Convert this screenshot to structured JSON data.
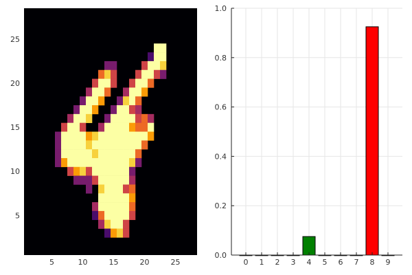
{
  "chart_data": [
    {
      "type": "heatmap",
      "title": "",
      "xlabel": "",
      "ylabel": "",
      "xlim": [
        0.5,
        28.5
      ],
      "ylim": [
        0.5,
        28.5
      ],
      "x_ticks": [
        "5",
        "10",
        "15",
        "20",
        "25"
      ],
      "y_ticks": [
        "5",
        "10",
        "15",
        "20",
        "25"
      ],
      "colorscale": [
        "#000004",
        "#1b0c41",
        "#4a0c6b",
        "#781c6d",
        "#a52c60",
        "#cf4446",
        "#ed6925",
        "#fb9b06",
        "#f7d13d",
        "#fcffa4"
      ],
      "cells_format": "[column, row, intensity 0-1]",
      "cells": [
        [
          22,
          24,
          1
        ],
        [
          23,
          24,
          1
        ],
        [
          21,
          23,
          0.2
        ],
        [
          22,
          23,
          1
        ],
        [
          23,
          23,
          1
        ],
        [
          14,
          22,
          0.3
        ],
        [
          15,
          22,
          0.3
        ],
        [
          20,
          22,
          0.6
        ],
        [
          21,
          22,
          1
        ],
        [
          22,
          22,
          1
        ],
        [
          23,
          22,
          0.9
        ],
        [
          13,
          21,
          0.7
        ],
        [
          14,
          21,
          0.85
        ],
        [
          15,
          21,
          0.5
        ],
        [
          19,
          21,
          0.5
        ],
        [
          20,
          21,
          1
        ],
        [
          21,
          21,
          1
        ],
        [
          22,
          21,
          0.6
        ],
        [
          23,
          21,
          0.3
        ],
        [
          12,
          20,
          0.5
        ],
        [
          13,
          20,
          1
        ],
        [
          14,
          20,
          1
        ],
        [
          15,
          20,
          0.6
        ],
        [
          18,
          20,
          0.5
        ],
        [
          19,
          20,
          1
        ],
        [
          20,
          20,
          1
        ],
        [
          21,
          20,
          0.65
        ],
        [
          11,
          19,
          0.4
        ],
        [
          12,
          19,
          0.95
        ],
        [
          13,
          19,
          1
        ],
        [
          14,
          19,
          0.7
        ],
        [
          17,
          19,
          0.4
        ],
        [
          18,
          19,
          1
        ],
        [
          19,
          19,
          1
        ],
        [
          20,
          19,
          0.8
        ],
        [
          10,
          18,
          0.35
        ],
        [
          11,
          18,
          1
        ],
        [
          12,
          18,
          1
        ],
        [
          13,
          18,
          0.8
        ],
        [
          16,
          18,
          0.3
        ],
        [
          17,
          18,
          0.9
        ],
        [
          18,
          18,
          1
        ],
        [
          19,
          18,
          0.7
        ],
        [
          9,
          17,
          0.3
        ],
        [
          10,
          17,
          0.95
        ],
        [
          11,
          17,
          1
        ],
        [
          12,
          17,
          0.8
        ],
        [
          15,
          17,
          0.3
        ],
        [
          16,
          17,
          0.95
        ],
        [
          17,
          17,
          1
        ],
        [
          18,
          17,
          0.6
        ],
        [
          19,
          17,
          0.45
        ],
        [
          8,
          16,
          0.4
        ],
        [
          9,
          16,
          1
        ],
        [
          10,
          16,
          1
        ],
        [
          11,
          16,
          0.9
        ],
        [
          14,
          16,
          0.3
        ],
        [
          15,
          16,
          1
        ],
        [
          16,
          16,
          1
        ],
        [
          17,
          16,
          1
        ],
        [
          18,
          16,
          1
        ],
        [
          19,
          16,
          0.5
        ],
        [
          20,
          16,
          0.7
        ],
        [
          21,
          16,
          0.4
        ],
        [
          7,
          15,
          0.6
        ],
        [
          8,
          15,
          1
        ],
        [
          9,
          15,
          1
        ],
        [
          10,
          15,
          0.6
        ],
        [
          13,
          15,
          0.4
        ],
        [
          14,
          15,
          1
        ],
        [
          15,
          15,
          1
        ],
        [
          16,
          15,
          1
        ],
        [
          17,
          15,
          1
        ],
        [
          18,
          15,
          0.8
        ],
        [
          19,
          15,
          0.7
        ],
        [
          20,
          15,
          0.7
        ],
        [
          21,
          15,
          1
        ],
        [
          6,
          14,
          0.3
        ],
        [
          7,
          14,
          1
        ],
        [
          8,
          14,
          1
        ],
        [
          9,
          14,
          1
        ],
        [
          10,
          14,
          1
        ],
        [
          11,
          14,
          0.8
        ],
        [
          12,
          14,
          0.9
        ],
        [
          13,
          14,
          1
        ],
        [
          14,
          14,
          1
        ],
        [
          15,
          14,
          1
        ],
        [
          16,
          14,
          1
        ],
        [
          17,
          14,
          1
        ],
        [
          18,
          14,
          1
        ],
        [
          19,
          14,
          1
        ],
        [
          20,
          14,
          1
        ],
        [
          21,
          14,
          0.75
        ],
        [
          6,
          13,
          0.35
        ],
        [
          7,
          13,
          1
        ],
        [
          8,
          13,
          1
        ],
        [
          9,
          13,
          1
        ],
        [
          10,
          13,
          1
        ],
        [
          11,
          13,
          0.85
        ],
        [
          12,
          13,
          1
        ],
        [
          13,
          13,
          1
        ],
        [
          14,
          13,
          1
        ],
        [
          15,
          13,
          1
        ],
        [
          16,
          13,
          1
        ],
        [
          17,
          13,
          1
        ],
        [
          18,
          13,
          1
        ],
        [
          19,
          13,
          1
        ],
        [
          20,
          13,
          0.7
        ],
        [
          6,
          12,
          0.3
        ],
        [
          7,
          12,
          1
        ],
        [
          8,
          12,
          1
        ],
        [
          9,
          12,
          1
        ],
        [
          10,
          12,
          1
        ],
        [
          11,
          12,
          1
        ],
        [
          12,
          12,
          0.9
        ],
        [
          13,
          12,
          1
        ],
        [
          14,
          12,
          1
        ],
        [
          15,
          12,
          1
        ],
        [
          16,
          12,
          1
        ],
        [
          17,
          12,
          1
        ],
        [
          18,
          12,
          1
        ],
        [
          19,
          12,
          0.7
        ],
        [
          6,
          11,
          0.3
        ],
        [
          7,
          11,
          0.75
        ],
        [
          8,
          11,
          1
        ],
        [
          9,
          11,
          1
        ],
        [
          10,
          11,
          1
        ],
        [
          11,
          11,
          1
        ],
        [
          12,
          11,
          1
        ],
        [
          13,
          11,
          1
        ],
        [
          14,
          11,
          1
        ],
        [
          15,
          11,
          1
        ],
        [
          16,
          11,
          1
        ],
        [
          17,
          11,
          1
        ],
        [
          18,
          11,
          0.9
        ],
        [
          19,
          11,
          0.35
        ],
        [
          8,
          10,
          0.5
        ],
        [
          9,
          10,
          0.8
        ],
        [
          10,
          10,
          0.85
        ],
        [
          11,
          10,
          0.6
        ],
        [
          12,
          10,
          1
        ],
        [
          13,
          10,
          1
        ],
        [
          14,
          10,
          1
        ],
        [
          15,
          10,
          1
        ],
        [
          16,
          10,
          1
        ],
        [
          17,
          10,
          1
        ],
        [
          18,
          10,
          0.3
        ],
        [
          9,
          9,
          0.3
        ],
        [
          10,
          9,
          0.3
        ],
        [
          11,
          9,
          0.3
        ],
        [
          12,
          9,
          0.55
        ],
        [
          13,
          9,
          1
        ],
        [
          14,
          9,
          1
        ],
        [
          15,
          9,
          1
        ],
        [
          16,
          9,
          1
        ],
        [
          17,
          9,
          1
        ],
        [
          18,
          9,
          0.4
        ],
        [
          11,
          8,
          0.3
        ],
        [
          13,
          8,
          0.9
        ],
        [
          14,
          8,
          1
        ],
        [
          15,
          8,
          1
        ],
        [
          16,
          8,
          1
        ],
        [
          17,
          8,
          0.5
        ],
        [
          18,
          8,
          0.7
        ],
        [
          13,
          7,
          1
        ],
        [
          14,
          7,
          1
        ],
        [
          15,
          7,
          1
        ],
        [
          16,
          7,
          1
        ],
        [
          17,
          7,
          1
        ],
        [
          18,
          7,
          0.8
        ],
        [
          12,
          6,
          0.45
        ],
        [
          13,
          6,
          1
        ],
        [
          14,
          6,
          1
        ],
        [
          15,
          6,
          1
        ],
        [
          16,
          6,
          1
        ],
        [
          17,
          6,
          1
        ],
        [
          18,
          6,
          0.7
        ],
        [
          12,
          5,
          0.2
        ],
        [
          13,
          5,
          0.7
        ],
        [
          14,
          5,
          1
        ],
        [
          15,
          5,
          1
        ],
        [
          16,
          5,
          1
        ],
        [
          17,
          5,
          1
        ],
        [
          18,
          5,
          0.6
        ],
        [
          13,
          4,
          0.4
        ],
        [
          14,
          4,
          0.9
        ],
        [
          15,
          4,
          1
        ],
        [
          16,
          4,
          1
        ],
        [
          17,
          4,
          0.5
        ],
        [
          14,
          3,
          0.25
        ],
        [
          15,
          3,
          0.75
        ],
        [
          16,
          3,
          0.85
        ],
        [
          17,
          3,
          0.5
        ]
      ]
    },
    {
      "type": "bar",
      "title": "",
      "xlabel": "",
      "ylabel": "",
      "categories": [
        "0",
        "1",
        "2",
        "3",
        "4",
        "5",
        "6",
        "7",
        "8",
        "9"
      ],
      "values": [
        0,
        0,
        0,
        0,
        0.075,
        0,
        0,
        0,
        0.925,
        0
      ],
      "bar_colors": [
        "#008000",
        "#008000",
        "#008000",
        "#008000",
        "#008000",
        "#008000",
        "#008000",
        "#008000",
        "#ff0000",
        "#008000"
      ],
      "ylim": [
        0,
        1
      ],
      "y_ticks": [
        "0.0",
        "0.2",
        "0.4",
        "0.6",
        "0.8",
        "1.0"
      ],
      "grid": true,
      "legend": "none"
    }
  ]
}
